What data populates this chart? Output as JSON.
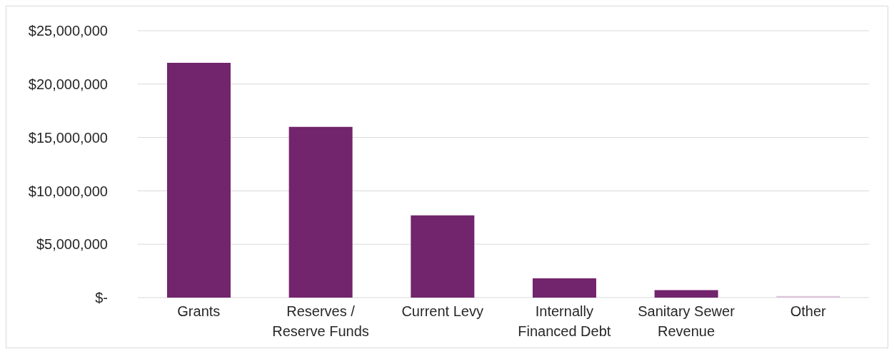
{
  "chart_data": {
    "type": "bar",
    "categories": [
      "Grants",
      "Reserves / Reserve Funds",
      "Current Levy",
      "Internally Financed Debt",
      "Sanitary Sewer Revenue",
      "Other"
    ],
    "values": [
      22000000,
      16000000,
      7700000,
      1800000,
      700000,
      150000
    ],
    "colors": [
      "#72246c",
      "#72246c",
      "#72246c",
      "#72246c",
      "#72246c",
      "#dcc6da"
    ],
    "ylim": [
      0,
      25000000
    ],
    "yticks": [
      {
        "value": 0,
        "label": "$-"
      },
      {
        "value": 5000000,
        "label": "$5,000,000"
      },
      {
        "value": 10000000,
        "label": "$10,000,000"
      },
      {
        "value": 15000000,
        "label": "$15,000,000"
      },
      {
        "value": 20000000,
        "label": "$20,000,000"
      },
      {
        "value": 25000000,
        "label": "$25,000,000"
      }
    ],
    "grid": "y"
  }
}
